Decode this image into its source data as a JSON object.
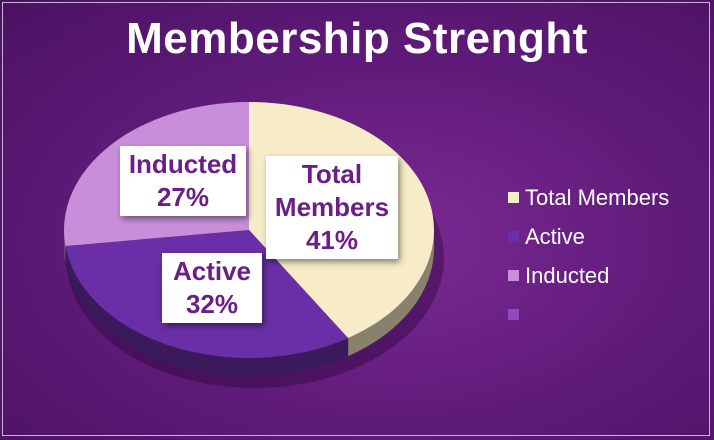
{
  "chart_data": {
    "type": "pie",
    "title": "Membership Strenght",
    "slices": [
      {
        "name": "Total Members",
        "value": 41,
        "label": "Total Members\n41%",
        "color": "#f7ecc7"
      },
      {
        "name": "Active",
        "value": 32,
        "label": "Active\n32%",
        "color": "#6a2fa6"
      },
      {
        "name": "Inducted",
        "value": 27,
        "label": "Inducted\n27%",
        "color": "#c98ed9"
      }
    ],
    "legend": {
      "placement": "right",
      "entries": [
        {
          "label": "Total Members",
          "color": "#f7ecc7"
        },
        {
          "label": "Active",
          "color": "#6a2fa6"
        },
        {
          "label": "Inducted",
          "color": "#c98ed9"
        },
        {
          "label": "",
          "color": "#8e4bbb"
        }
      ]
    }
  }
}
